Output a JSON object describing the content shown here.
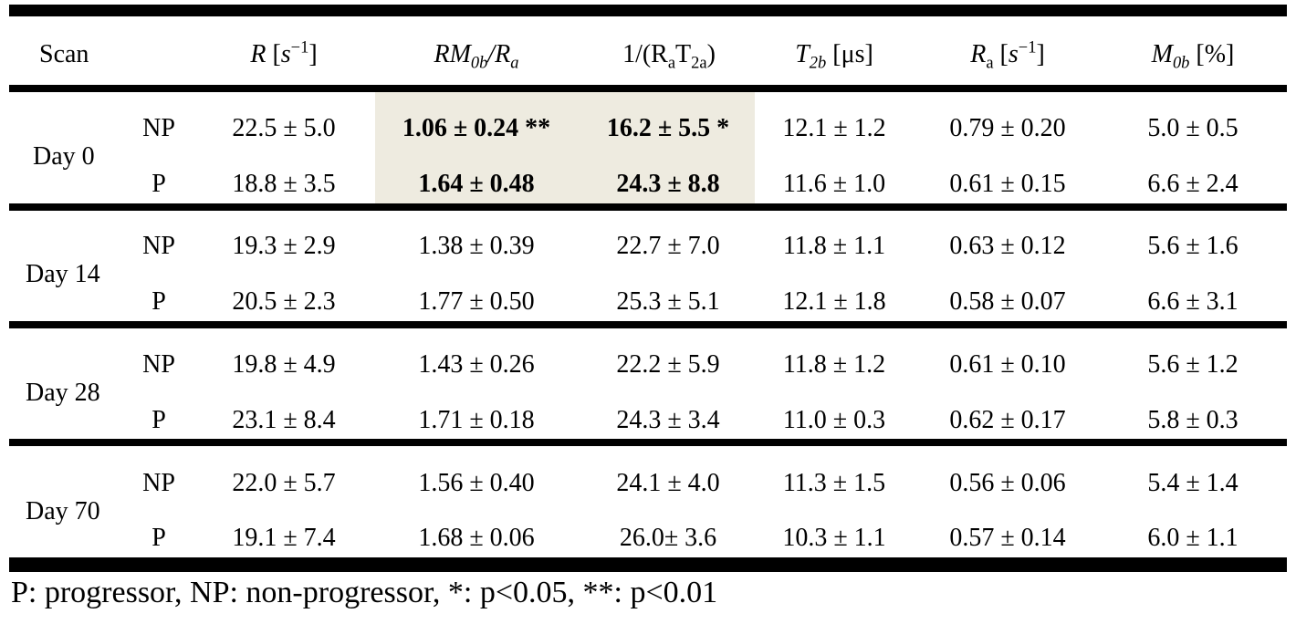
{
  "header": {
    "scan": "Scan",
    "col1": {
      "sym": "R",
      "unit_open": "[",
      "unit": "s",
      "exp": "−1",
      "unit_close": "]"
    },
    "col2": {
      "a": "RM",
      "a_sub": "0b",
      "slash": "/",
      "b": "R",
      "b_sub": "a"
    },
    "col3": {
      "pre": "1/(R",
      "sub1": "a",
      "mid": "T",
      "sub2": "2a",
      "post": ")"
    },
    "col4": {
      "sym": "T",
      "sub": "2b",
      "unit": "[μs]"
    },
    "col5": {
      "sym": "R",
      "sub": "a",
      "unit_open": "[",
      "unit": "s",
      "exp": "−1",
      "unit_close": "]"
    },
    "col6": {
      "sym": "M",
      "sub": "0b",
      "unit": "[%]"
    }
  },
  "groups": [
    {
      "label": "Day 0",
      "rows": [
        {
          "group": "NP",
          "values": [
            "22.5 ± 5.0",
            "1.06 ± 0.24 **",
            "16.2 ± 5.5 *",
            "12.1 ± 1.2",
            "0.79 ± 0.20",
            "5.0 ± 0.5"
          ]
        },
        {
          "group": "P",
          "values": [
            "18.8 ± 3.5",
            "1.64 ± 0.48",
            "24.3 ± 8.8",
            "11.6 ± 1.0",
            "0.61 ± 0.15",
            "6.6 ± 2.4"
          ]
        }
      ]
    },
    {
      "label": "Day 14",
      "rows": [
        {
          "group": "NP",
          "values": [
            "19.3 ± 2.9",
            "1.38 ± 0.39",
            "22.7 ± 7.0",
            "11.8 ± 1.1",
            "0.63 ± 0.12",
            "5.6 ± 1.6"
          ]
        },
        {
          "group": "P",
          "values": [
            "20.5 ± 2.3",
            "1.77 ± 0.50",
            "25.3 ± 5.1",
            "12.1 ± 1.8",
            "0.58 ± 0.07",
            "6.6 ± 3.1"
          ]
        }
      ]
    },
    {
      "label": "Day 28",
      "rows": [
        {
          "group": "NP",
          "values": [
            "19.8 ± 4.9",
            "1.43 ± 0.26",
            "22.2 ± 5.9",
            "11.8 ± 1.2",
            "0.61 ± 0.10",
            "5.6 ± 1.2"
          ]
        },
        {
          "group": "P",
          "values": [
            "23.1 ± 8.4",
            "1.71 ± 0.18",
            "24.3 ± 3.4",
            "11.0 ± 0.3",
            "0.62 ± 0.17",
            "5.8 ± 0.3"
          ]
        }
      ]
    },
    {
      "label": "Day 70",
      "rows": [
        {
          "group": "NP",
          "values": [
            "22.0 ± 5.7",
            "1.56 ± 0.40",
            "24.1 ± 4.0",
            "11.3 ± 1.5",
            "0.56 ± 0.06",
            "5.4 ± 1.4"
          ]
        },
        {
          "group": "P",
          "values": [
            "19.1 ± 7.4",
            "1.68 ± 0.06",
            "26.0± 3.6",
            "10.3 ± 1.1",
            "0.57 ± 0.14",
            "6.0 ± 1.1"
          ]
        }
      ]
    }
  ],
  "highlight_color": "#eeebe0",
  "footer": "P: progressor, NP: non-progressor, *: p<0.05, **: p<0.01"
}
